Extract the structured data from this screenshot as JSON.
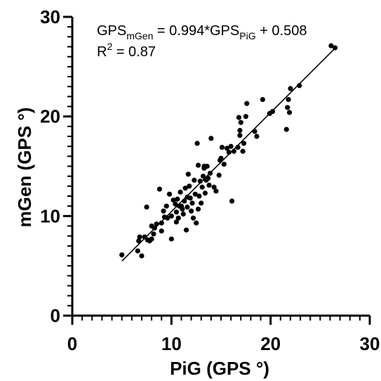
{
  "chart_data": {
    "type": "scatter",
    "xlabel": "PiG (GPS °)",
    "ylabel": "mGen (GPS °)",
    "xlim": [
      0,
      30
    ],
    "ylim": [
      0,
      30
    ],
    "x_ticks": [
      "0",
      "10",
      "20",
      "30"
    ],
    "y_ticks": [
      "0",
      "10",
      "20",
      "30"
    ],
    "x_minor_step": 1,
    "y_minor_step": 1,
    "grid": false,
    "legend": "none",
    "equation": {
      "prefix": "GPS",
      "lhs_sub": "mGen",
      "mid": " = 0.994*GPS",
      "rhs_sub": "PiG",
      "suffix": " + 0.508"
    },
    "r2": {
      "label": "R",
      "sup": "2",
      "rest": " = 0.87"
    },
    "fit": {
      "slope": 0.994,
      "intercept": 0.508,
      "x_range": [
        5.0,
        26.6
      ]
    },
    "points": [
      [
        5.0,
        6.1
      ],
      [
        6.6,
        6.5
      ],
      [
        6.7,
        7.5
      ],
      [
        6.8,
        7.9
      ],
      [
        7.0,
        6.0
      ],
      [
        7.3,
        7.9
      ],
      [
        7.5,
        10.9
      ],
      [
        7.6,
        7.6
      ],
      [
        7.8,
        7.5
      ],
      [
        8.0,
        7.7
      ],
      [
        8.0,
        9.0
      ],
      [
        8.2,
        8.2
      ],
      [
        8.3,
        8.8
      ],
      [
        8.5,
        9.2
      ],
      [
        8.8,
        12.7
      ],
      [
        9.0,
        8.5
      ],
      [
        9.0,
        9.3
      ],
      [
        9.2,
        10.5
      ],
      [
        9.5,
        11.0
      ],
      [
        9.6,
        9.8
      ],
      [
        9.8,
        12.2
      ],
      [
        10.0,
        7.7
      ],
      [
        10.0,
        10.0
      ],
      [
        10.2,
        11.6
      ],
      [
        10.4,
        11.2
      ],
      [
        10.5,
        9.4
      ],
      [
        10.5,
        10.4
      ],
      [
        10.7,
        9.8
      ],
      [
        10.8,
        11.0
      ],
      [
        10.9,
        12.4
      ],
      [
        11.0,
        11.0
      ],
      [
        11.1,
        10.7
      ],
      [
        11.2,
        10.2
      ],
      [
        11.3,
        11.5
      ],
      [
        11.4,
        12.8
      ],
      [
        11.5,
        8.6
      ],
      [
        11.6,
        10.9
      ],
      [
        11.7,
        14.2
      ],
      [
        11.8,
        13.0
      ],
      [
        11.9,
        11.8
      ],
      [
        12.0,
        10.5
      ],
      [
        12.1,
        11.3
      ],
      [
        12.2,
        9.8
      ],
      [
        12.3,
        13.6
      ],
      [
        12.4,
        12.2
      ],
      [
        12.5,
        9.3
      ],
      [
        12.6,
        17.3
      ],
      [
        12.7,
        10.7
      ],
      [
        12.8,
        12.0
      ],
      [
        12.9,
        13.5
      ],
      [
        13.0,
        11.3
      ],
      [
        13.1,
        12.9
      ],
      [
        13.2,
        14.0
      ],
      [
        13.3,
        14.8
      ],
      [
        13.4,
        12.3
      ],
      [
        13.5,
        13.6
      ],
      [
        13.6,
        15.0
      ],
      [
        13.7,
        13.8
      ],
      [
        13.8,
        13.1
      ],
      [
        13.9,
        14.3
      ],
      [
        14.0,
        17.8
      ],
      [
        14.3,
        12.9
      ],
      [
        14.5,
        12.5
      ],
      [
        14.8,
        14.1
      ],
      [
        15.0,
        15.8
      ],
      [
        15.3,
        15.2
      ],
      [
        15.6,
        16.8
      ],
      [
        15.8,
        16.4
      ],
      [
        16.0,
        17.0
      ],
      [
        16.1,
        11.5
      ],
      [
        16.3,
        16.5
      ],
      [
        16.7,
        16.9
      ],
      [
        16.9,
        18.6
      ],
      [
        17.0,
        19.4
      ],
      [
        17.2,
        16.5
      ],
      [
        17.3,
        17.3
      ],
      [
        17.5,
        20.0
      ],
      [
        17.6,
        21.3
      ],
      [
        18.4,
        18.5
      ],
      [
        18.6,
        18.0
      ],
      [
        19.2,
        21.7
      ],
      [
        19.9,
        20.3
      ],
      [
        20.2,
        20.5
      ],
      [
        21.6,
        18.7
      ],
      [
        21.7,
        20.9
      ],
      [
        21.8,
        21.7
      ],
      [
        21.9,
        20.4
      ],
      [
        22.0,
        22.8
      ],
      [
        22.9,
        23.1
      ],
      [
        26.1,
        27.1
      ],
      [
        26.5,
        26.9
      ],
      [
        16.9,
        18.1
      ],
      [
        14.9,
        15.6
      ],
      [
        11.6,
        11.9
      ],
      [
        10.6,
        11.7
      ],
      [
        9.3,
        9.9
      ],
      [
        16.8,
        19.9
      ],
      [
        12.7,
        15.1
      ],
      [
        13.3,
        15.0
      ],
      [
        15.1,
        16.9
      ]
    ]
  }
}
